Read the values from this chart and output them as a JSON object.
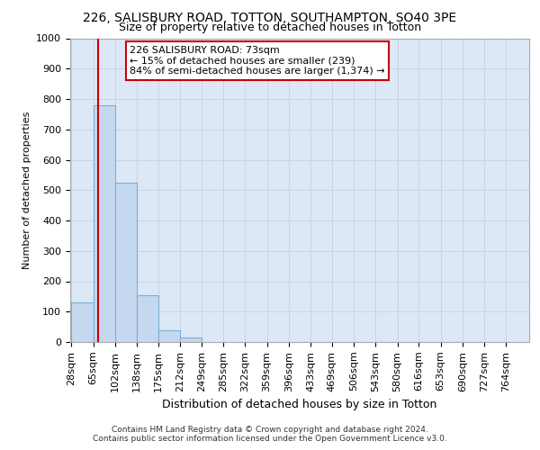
{
  "title": "226, SALISBURY ROAD, TOTTON, SOUTHAMPTON, SO40 3PE",
  "subtitle": "Size of property relative to detached houses in Totton",
  "xlabel": "Distribution of detached houses by size in Totton",
  "ylabel": "Number of detached properties",
  "bin_edges": [
    28,
    65,
    102,
    138,
    175,
    212,
    249,
    285,
    322,
    359,
    396,
    433,
    469,
    506,
    543,
    580,
    616,
    653,
    690,
    727,
    764
  ],
  "bar_heights": [
    130,
    780,
    525,
    155,
    40,
    15,
    0,
    0,
    0,
    0,
    0,
    0,
    0,
    0,
    0,
    0,
    0,
    0,
    0,
    0
  ],
  "bar_color": "#c5d8f0",
  "bar_edge_color": "#7bafd4",
  "grid_color": "#c8d4e4",
  "background_color": "#dce8f5",
  "red_line_x": 73,
  "annotation_line1": "226 SALISBURY ROAD: 73sqm",
  "annotation_line2": "← 15% of detached houses are smaller (239)",
  "annotation_line3": "84% of semi-detached houses are larger (1,374) →",
  "annotation_box_color": "#ffffff",
  "annotation_edge_color": "#cc0000",
  "ylim": [
    0,
    1000
  ],
  "yticks": [
    0,
    100,
    200,
    300,
    400,
    500,
    600,
    700,
    800,
    900,
    1000
  ],
  "title_fontsize": 10,
  "subtitle_fontsize": 9,
  "xlabel_fontsize": 9,
  "ylabel_fontsize": 8,
  "tick_fontsize": 8,
  "annotation_fontsize": 8,
  "footer_line1": "Contains HM Land Registry data © Crown copyright and database right 2024.",
  "footer_line2": "Contains public sector information licensed under the Open Government Licence v3.0.",
  "footer_fontsize": 6.5
}
